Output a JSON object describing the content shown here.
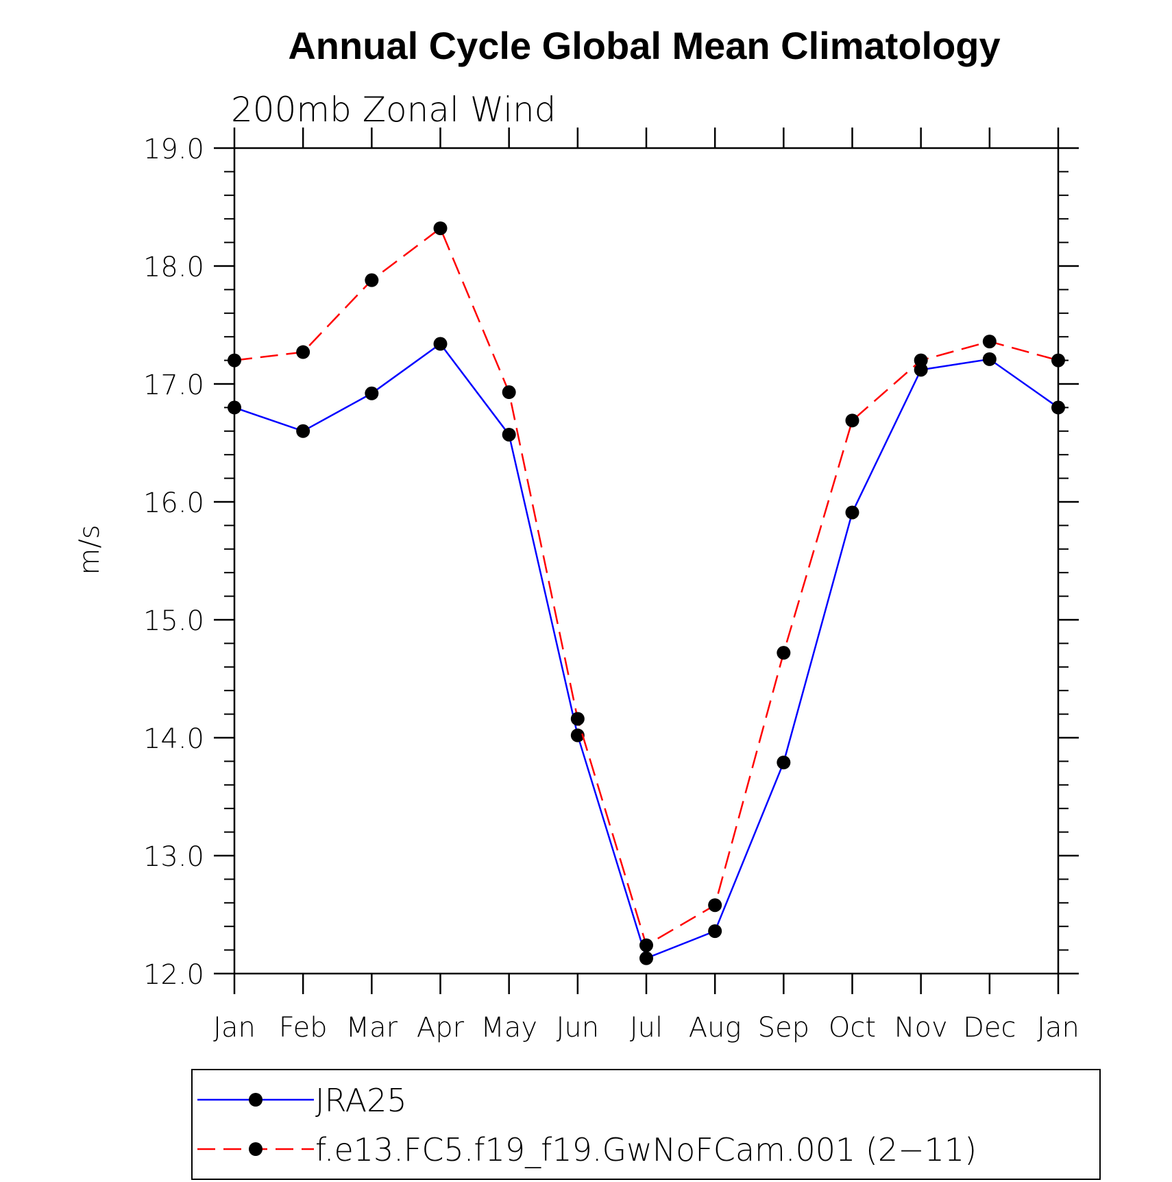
{
  "chart_data": {
    "type": "line",
    "title": "Annual Cycle Global Mean Climatology",
    "subtitle": "200mb Zonal Wind",
    "xlabel": "",
    "ylabel": "m/s",
    "categories": [
      "Jan",
      "Feb",
      "Mar",
      "Apr",
      "May",
      "Jun",
      "Jul",
      "Aug",
      "Sep",
      "Oct",
      "Nov",
      "Dec",
      "Jan"
    ],
    "ylim": [
      12.0,
      19.0
    ],
    "yticks": [
      "12.0",
      "13.0",
      "14.0",
      "15.0",
      "16.0",
      "17.0",
      "18.0",
      "19.0"
    ],
    "grid": false,
    "legend_position": "bottom",
    "series": [
      {
        "name": "JRA25",
        "color": "#0000ff",
        "style": "solid",
        "values": [
          16.8,
          16.6,
          16.92,
          17.34,
          16.57,
          14.02,
          12.13,
          12.36,
          13.79,
          15.91,
          17.12,
          17.21,
          16.8
        ]
      },
      {
        "name": "f.e13.FC5.f19_f19.GwNoFCam.001 (2−11)",
        "color": "#ff0000",
        "style": "dashed",
        "values": [
          17.2,
          17.27,
          17.88,
          18.32,
          16.93,
          14.16,
          12.24,
          12.58,
          14.72,
          16.69,
          17.2,
          17.36,
          17.2
        ]
      }
    ]
  }
}
